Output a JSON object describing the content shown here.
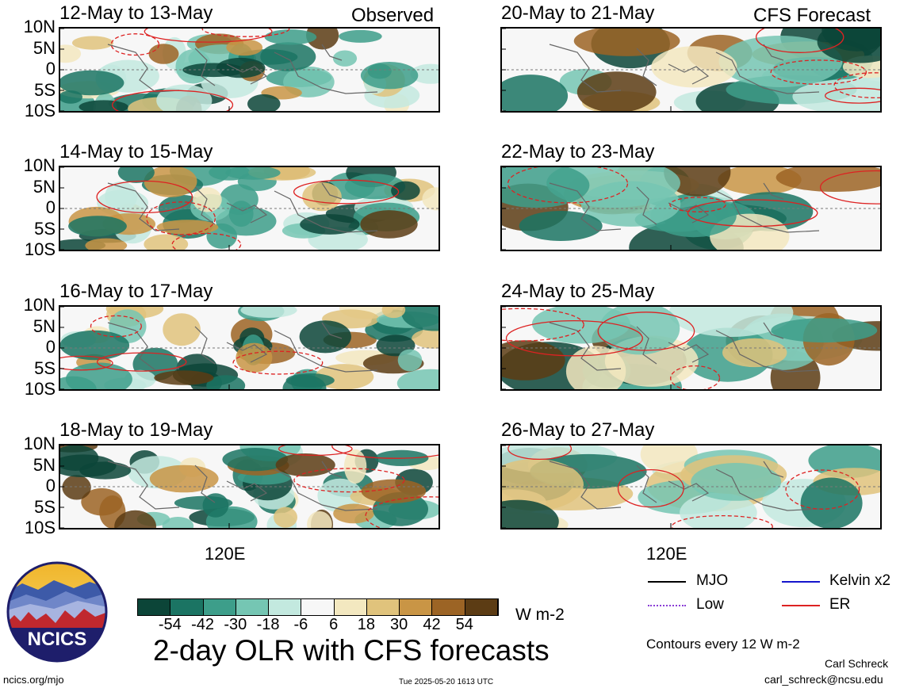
{
  "header": {
    "left_label": "Observed",
    "right_label": "CFS Forecast"
  },
  "panels": {
    "left": [
      {
        "title": "12-May to 13-May",
        "kind": "observed"
      },
      {
        "title": "14-May to 15-May",
        "kind": "observed"
      },
      {
        "title": "16-May to 17-May",
        "kind": "observed"
      },
      {
        "title": "18-May to 19-May",
        "kind": "observed"
      }
    ],
    "right": [
      {
        "title": "20-May to 21-May",
        "kind": "forecast"
      },
      {
        "title": "22-May to 23-May",
        "kind": "forecast"
      },
      {
        "title": "24-May to 25-May",
        "kind": "forecast"
      },
      {
        "title": "26-May to 27-May",
        "kind": "forecast"
      }
    ]
  },
  "axes": {
    "lat_labels": [
      "10N",
      "5N",
      "0",
      "5S",
      "10S"
    ],
    "lon_label": "120E"
  },
  "colorbar": {
    "colors": [
      "#0c4538",
      "#1b7463",
      "#3d9e8a",
      "#75c6b3",
      "#c3e9df",
      "#f7f7f7",
      "#f3e8c0",
      "#e0c37c",
      "#c99545",
      "#9c6425",
      "#5c3c14"
    ],
    "labels": [
      "-54",
      "-42",
      "-30",
      "-18",
      "-6",
      "6",
      "18",
      "30",
      "42",
      "54"
    ],
    "units": "W m-2"
  },
  "legend": {
    "items": [
      {
        "label": "MJO",
        "color": "#000000",
        "style": "solid"
      },
      {
        "label": "Kelvin x2",
        "color": "#1515cc",
        "style": "solid"
      },
      {
        "label": "Low",
        "color": "#8a3dd6",
        "style": "dotted"
      },
      {
        "label": "ER",
        "color": "#dd2222",
        "style": "solid"
      }
    ],
    "note": "Contours every 12 W m-2"
  },
  "footer": {
    "main_title": "2-day OLR with CFS forecasts",
    "logo_text": "NCICS",
    "website": "ncics.org/mjo",
    "timestamp": "Tue 2025-05-20 1613 UTC",
    "author": "Carl Schreck",
    "email": "carl_schreck@ncsu.edu"
  }
}
